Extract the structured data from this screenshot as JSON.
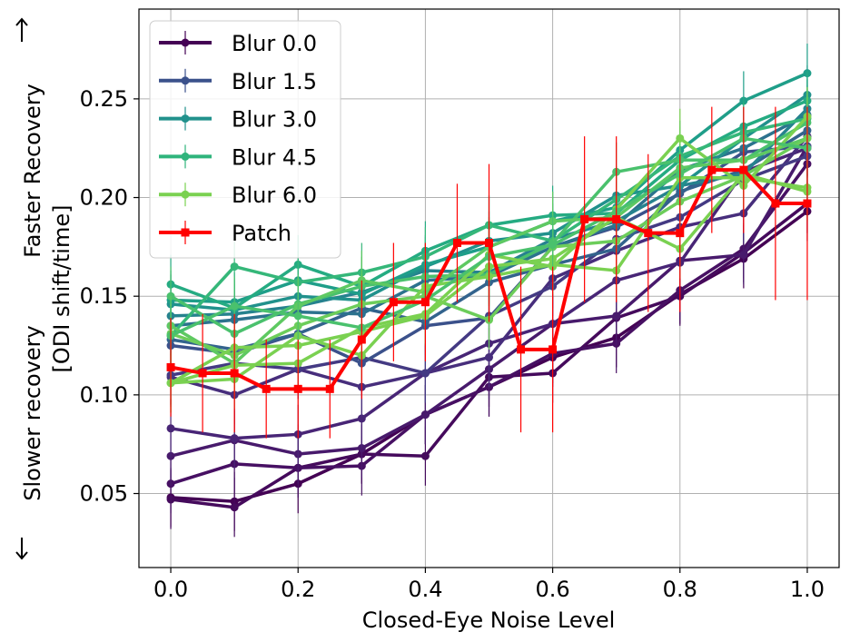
{
  "chart_data": {
    "type": "line",
    "xlabel": "Closed-Eye Noise Level",
    "ylabel_line1": "Slower recovery",
    "ylabel_line2": "Faster Recovery",
    "ylabel_line3": "[ODI shift/time]",
    "xlim": [
      -0.05,
      1.05
    ],
    "ylim": [
      0.0125,
      0.2955
    ],
    "x_ticks": [
      0.0,
      0.2,
      0.4,
      0.6,
      0.8,
      1.0
    ],
    "x_tick_labels": [
      "0.0",
      "0.2",
      "0.4",
      "0.6",
      "0.8",
      "1.0"
    ],
    "y_ticks": [
      0.05,
      0.1,
      0.15,
      0.2,
      0.25
    ],
    "y_tick_labels": [
      "0.05",
      "0.10",
      "0.15",
      "0.20",
      "0.25"
    ],
    "grid": true,
    "legend_position": "top-left",
    "legend": [
      {
        "name": "Blur 0.0",
        "color": "#440154"
      },
      {
        "name": "Blur 1.5",
        "color": "#3b518b"
      },
      {
        "name": "Blur 3.0",
        "color": "#21918c"
      },
      {
        "name": "Blur 4.5",
        "color": "#2fb47c"
      },
      {
        "name": "Blur 6.0",
        "color": "#7ad151"
      },
      {
        "name": "Patch",
        "color": "#ff0000"
      }
    ],
    "blur_x": [
      0.0,
      0.1,
      0.2,
      0.3,
      0.4,
      0.5,
      0.6,
      0.7,
      0.8,
      0.9,
      1.0
    ],
    "blur_series": [
      {
        "color": "#440154",
        "values": [
          0.048,
          0.046,
          0.055,
          0.07,
          0.09,
          0.104,
          0.119,
          0.129,
          0.151,
          0.169,
          0.193
        ],
        "err": 0.015
      },
      {
        "color": "#450a5c",
        "values": [
          0.047,
          0.043,
          0.063,
          0.07,
          0.069,
          0.109,
          0.111,
          0.139,
          0.15,
          0.172,
          0.197
        ],
        "err": 0.015
      },
      {
        "color": "#471063",
        "values": [
          0.055,
          0.065,
          0.063,
          0.064,
          0.09,
          0.104,
          0.121,
          0.126,
          0.153,
          0.174,
          0.217
        ],
        "err": 0.015
      },
      {
        "color": "#481a6c",
        "values": [
          0.069,
          0.077,
          0.07,
          0.073,
          0.09,
          0.113,
          0.136,
          0.14,
          0.168,
          0.171,
          0.226
        ],
        "err": 0.015
      },
      {
        "color": "#482576",
        "values": [
          0.083,
          0.078,
          0.08,
          0.088,
          0.111,
          0.126,
          0.136,
          0.158,
          0.167,
          0.213,
          0.225
        ],
        "err": 0.015
      },
      {
        "color": "#472e7c",
        "values": [
          0.109,
          0.1,
          0.113,
          0.104,
          0.111,
          0.119,
          0.159,
          0.173,
          0.185,
          0.192,
          0.231
        ],
        "err": 0.015
      },
      {
        "color": "#443a83",
        "values": [
          0.11,
          0.116,
          0.113,
          0.119,
          0.111,
          0.14,
          0.155,
          0.179,
          0.19,
          0.209,
          0.221
        ],
        "err": 0.015
      },
      {
        "color": "#3b518b",
        "values": [
          0.125,
          0.121,
          0.131,
          0.116,
          0.135,
          0.139,
          0.175,
          0.185,
          0.202,
          0.223,
          0.226
        ],
        "err": 0.015
      },
      {
        "color": "#33638d",
        "values": [
          0.128,
          0.123,
          0.131,
          0.144,
          0.137,
          0.157,
          0.166,
          0.174,
          0.203,
          0.214,
          0.234
        ],
        "err": 0.015
      },
      {
        "color": "#2c728e",
        "values": [
          0.135,
          0.138,
          0.142,
          0.141,
          0.158,
          0.16,
          0.175,
          0.186,
          0.214,
          0.225,
          0.242
        ],
        "err": 0.015
      },
      {
        "color": "#26828e",
        "values": [
          0.14,
          0.141,
          0.145,
          0.152,
          0.163,
          0.162,
          0.179,
          0.188,
          0.206,
          0.212,
          0.245
        ],
        "err": 0.015
      },
      {
        "color": "#21918c",
        "values": [
          0.146,
          0.143,
          0.15,
          0.148,
          0.165,
          0.178,
          0.182,
          0.201,
          0.206,
          0.23,
          0.252
        ],
        "err": 0.015
      },
      {
        "color": "#1f9e89",
        "values": [
          0.148,
          0.147,
          0.158,
          0.151,
          0.166,
          0.175,
          0.188,
          0.195,
          0.224,
          0.249,
          0.263
        ],
        "err": 0.015
      },
      {
        "color": "#25ab82",
        "values": [
          0.156,
          0.144,
          0.166,
          0.155,
          0.173,
          0.186,
          0.191,
          0.192,
          0.219,
          0.236,
          0.249
        ],
        "err": 0.015
      },
      {
        "color": "#35b779",
        "values": [
          0.13,
          0.165,
          0.157,
          0.162,
          0.17,
          0.186,
          0.178,
          0.199,
          0.221,
          0.233,
          0.24
        ],
        "err": 0.015
      },
      {
        "color": "#4ac16d",
        "values": [
          0.15,
          0.131,
          0.146,
          0.155,
          0.16,
          0.161,
          0.177,
          0.213,
          0.219,
          0.219,
          0.238
        ],
        "err": 0.015
      },
      {
        "color": "#5ec962",
        "values": [
          0.135,
          0.116,
          0.145,
          0.158,
          0.152,
          0.175,
          0.188,
          0.19,
          0.215,
          0.219,
          0.23
        ],
        "err": 0.015
      },
      {
        "color": "#6ccd5a",
        "values": [
          0.131,
          0.12,
          0.135,
          0.146,
          0.15,
          0.138,
          0.175,
          0.178,
          0.198,
          0.211,
          0.23
        ],
        "err": 0.015
      },
      {
        "color": "#7ad151",
        "values": [
          0.106,
          0.115,
          0.116,
          0.134,
          0.141,
          0.171,
          0.165,
          0.194,
          0.23,
          0.206,
          0.241
        ],
        "err": 0.015
      },
      {
        "color": "#7ad151",
        "values": [
          0.106,
          0.124,
          0.125,
          0.132,
          0.14,
          0.165,
          0.169,
          0.19,
          0.174,
          0.212,
          0.203
        ],
        "err": 0.015
      },
      {
        "color": "#7ad151",
        "values": [
          0.106,
          0.108,
          0.13,
          0.12,
          0.155,
          0.16,
          0.166,
          0.163,
          0.21,
          0.21,
          0.205
        ],
        "err": 0.015
      },
      {
        "color": "#4ac16d",
        "values": [
          0.13,
          0.145,
          0.14,
          0.134,
          0.148,
          0.17,
          0.176,
          0.193,
          0.212,
          0.23,
          0.225
        ],
        "err": 0.015
      }
    ],
    "patch": {
      "name": "Patch",
      "color": "#ff0000",
      "x": [
        0.0,
        0.05,
        0.1,
        0.15,
        0.2,
        0.25,
        0.3,
        0.35,
        0.4,
        0.45,
        0.5,
        0.55,
        0.6,
        0.65,
        0.7,
        0.75,
        0.8,
        0.85,
        0.9,
        0.95,
        1.0
      ],
      "values": [
        0.114,
        0.111,
        0.111,
        0.103,
        0.103,
        0.103,
        0.128,
        0.147,
        0.147,
        0.177,
        0.177,
        0.123,
        0.123,
        0.189,
        0.189,
        0.182,
        0.182,
        0.214,
        0.214,
        0.197,
        0.197
      ],
      "err": [
        0.025,
        0.03,
        0.03,
        0.025,
        0.025,
        0.025,
        0.03,
        0.03,
        0.03,
        0.03,
        0.04,
        0.042,
        0.042,
        0.042,
        0.042,
        0.04,
        0.04,
        0.032,
        0.032,
        0.049,
        0.049
      ]
    }
  }
}
